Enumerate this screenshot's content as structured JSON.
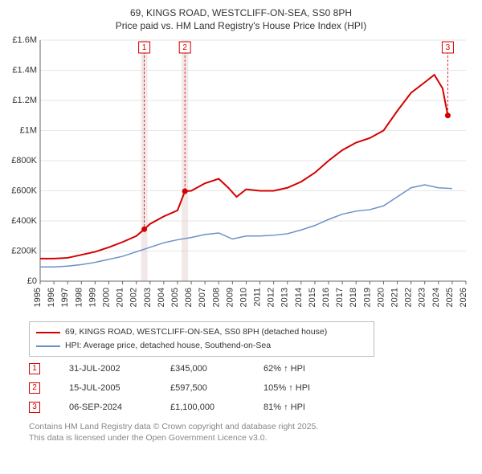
{
  "title_line1": "69, KINGS ROAD, WESTCLIFF-ON-SEA, SS0 8PH",
  "title_line2": "Price paid vs. HM Land Registry's House Price Index (HPI)",
  "chart": {
    "type": "line",
    "background_color": "#ffffff",
    "grid_color": "#cccccc",
    "x_years": [
      1995,
      1996,
      1997,
      1998,
      1999,
      2000,
      2001,
      2002,
      2003,
      2004,
      2005,
      2006,
      2007,
      2008,
      2009,
      2010,
      2011,
      2012,
      2013,
      2014,
      2015,
      2016,
      2017,
      2018,
      2019,
      2020,
      2021,
      2022,
      2023,
      2024,
      2025,
      2026
    ],
    "xlim": [
      1995,
      2026
    ],
    "ylim": [
      0,
      1600000
    ],
    "ytick_step": 200000,
    "ytick_labels": [
      "£0",
      "£200K",
      "£400K",
      "£600K",
      "£800K",
      "£1M",
      "£1.2M",
      "£1.4M",
      "£1.6M"
    ],
    "series": {
      "property": {
        "label": "69, KINGS ROAD, WESTCLIFF-ON-SEA, SS0 8PH (detached house)",
        "color": "#d40000",
        "line_width": 2,
        "points": [
          [
            1995.0,
            150000
          ],
          [
            1996.0,
            150000
          ],
          [
            1997.0,
            155000
          ],
          [
            1998.0,
            175000
          ],
          [
            1999.0,
            195000
          ],
          [
            2000.0,
            225000
          ],
          [
            2001.0,
            260000
          ],
          [
            2002.0,
            300000
          ],
          [
            2002.58,
            345000
          ],
          [
            2003.0,
            380000
          ],
          [
            2004.0,
            430000
          ],
          [
            2005.0,
            470000
          ],
          [
            2005.54,
            597500
          ],
          [
            2006.0,
            600000
          ],
          [
            2007.0,
            650000
          ],
          [
            2008.0,
            680000
          ],
          [
            2008.7,
            620000
          ],
          [
            2009.3,
            560000
          ],
          [
            2010.0,
            610000
          ],
          [
            2011.0,
            600000
          ],
          [
            2012.0,
            600000
          ],
          [
            2013.0,
            620000
          ],
          [
            2014.0,
            660000
          ],
          [
            2015.0,
            720000
          ],
          [
            2016.0,
            800000
          ],
          [
            2017.0,
            870000
          ],
          [
            2018.0,
            920000
          ],
          [
            2019.0,
            950000
          ],
          [
            2020.0,
            1000000
          ],
          [
            2021.0,
            1130000
          ],
          [
            2022.0,
            1250000
          ],
          [
            2023.0,
            1320000
          ],
          [
            2023.7,
            1370000
          ],
          [
            2024.3,
            1280000
          ],
          [
            2024.68,
            1100000
          ]
        ]
      },
      "hpi": {
        "label": "HPI: Average price, detached house, Southend-on-Sea",
        "color": "#6c8fc7",
        "line_width": 1.5,
        "points": [
          [
            1995.0,
            95000
          ],
          [
            1996.0,
            95000
          ],
          [
            1997.0,
            100000
          ],
          [
            1998.0,
            110000
          ],
          [
            1999.0,
            125000
          ],
          [
            2000.0,
            145000
          ],
          [
            2001.0,
            165000
          ],
          [
            2002.0,
            195000
          ],
          [
            2003.0,
            225000
          ],
          [
            2004.0,
            255000
          ],
          [
            2005.0,
            275000
          ],
          [
            2006.0,
            290000
          ],
          [
            2007.0,
            310000
          ],
          [
            2008.0,
            320000
          ],
          [
            2009.0,
            280000
          ],
          [
            2010.0,
            300000
          ],
          [
            2011.0,
            300000
          ],
          [
            2012.0,
            305000
          ],
          [
            2013.0,
            315000
          ],
          [
            2014.0,
            340000
          ],
          [
            2015.0,
            370000
          ],
          [
            2016.0,
            410000
          ],
          [
            2017.0,
            445000
          ],
          [
            2018.0,
            465000
          ],
          [
            2019.0,
            475000
          ],
          [
            2020.0,
            500000
          ],
          [
            2021.0,
            560000
          ],
          [
            2022.0,
            620000
          ],
          [
            2023.0,
            640000
          ],
          [
            2024.0,
            620000
          ],
          [
            2025.0,
            615000
          ]
        ]
      }
    },
    "markers": [
      {
        "num": "1",
        "x": 2002.58,
        "y": 345000,
        "band": true
      },
      {
        "num": "2",
        "x": 2005.54,
        "y": 597500,
        "band": true
      },
      {
        "num": "3",
        "x": 2024.68,
        "y": 1100000,
        "band": false
      }
    ],
    "marker_color": "#d40000",
    "band_color": "#f3e8e8"
  },
  "legend": {
    "items": [
      {
        "color": "#d40000",
        "label": "69, KINGS ROAD, WESTCLIFF-ON-SEA, SS0 8PH (detached house)"
      },
      {
        "color": "#6c8fc7",
        "label": "HPI: Average price, detached house, Southend-on-Sea"
      }
    ]
  },
  "transactions": [
    {
      "num": "1",
      "date": "31-JUL-2002",
      "price": "£345,000",
      "pct": "62% ↑ HPI"
    },
    {
      "num": "2",
      "date": "15-JUL-2005",
      "price": "£597,500",
      "pct": "105% ↑ HPI"
    },
    {
      "num": "3",
      "date": "06-SEP-2024",
      "price": "£1,100,000",
      "pct": "81% ↑ HPI"
    }
  ],
  "footer_line1": "Contains HM Land Registry data © Crown copyright and database right 2025.",
  "footer_line2": "This data is licensed under the Open Government Licence v3.0."
}
